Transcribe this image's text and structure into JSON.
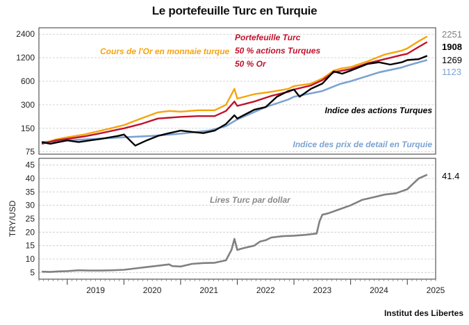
{
  "title": "Le portefeuille Turc en Turquie",
  "source": "Institut des Libertes",
  "chart_data": [
    {
      "type": "line",
      "yscale": "log",
      "ylim": [
        70,
        2900
      ],
      "yticks": [
        75,
        150,
        300,
        600,
        1200,
        2400
      ],
      "grid": true,
      "series": [
        {
          "name": "Cours de l'Or en monnaie turque",
          "color": "#F5A40D",
          "end_label": "2251",
          "end_label_color": "#808080",
          "points": [
            [
              2018.55,
              95
            ],
            [
              2018.8,
              108
            ],
            [
              2019.0,
              115
            ],
            [
              2019.3,
              125
            ],
            [
              2019.6,
              140
            ],
            [
              2019.9,
              158
            ],
            [
              2020.0,
              165
            ],
            [
              2020.3,
              200
            ],
            [
              2020.6,
              240
            ],
            [
              2020.8,
              250
            ],
            [
              2021.0,
              245
            ],
            [
              2021.3,
              255
            ],
            [
              2021.6,
              255
            ],
            [
              2021.8,
              300
            ],
            [
              2021.95,
              480
            ],
            [
              2022.0,
              360
            ],
            [
              2022.3,
              410
            ],
            [
              2022.6,
              440
            ],
            [
              2022.9,
              480
            ],
            [
              2023.0,
              520
            ],
            [
              2023.3,
              560
            ],
            [
              2023.5,
              650
            ],
            [
              2023.7,
              820
            ],
            [
              2023.85,
              880
            ],
            [
              2024.0,
              910
            ],
            [
              2024.3,
              1080
            ],
            [
              2024.6,
              1320
            ],
            [
              2024.9,
              1480
            ],
            [
              2025.0,
              1580
            ],
            [
              2025.2,
              1950
            ],
            [
              2025.35,
              2251
            ]
          ]
        },
        {
          "name": "Portefeuille Turc 50 % actions Turques 50 % Or",
          "color": "#C0122B",
          "end_label": "1908",
          "end_label_color": "#000000",
          "points": [
            [
              2018.55,
              95
            ],
            [
              2018.8,
              105
            ],
            [
              2019.0,
              110
            ],
            [
              2019.3,
              118
            ],
            [
              2019.6,
              130
            ],
            [
              2019.9,
              145
            ],
            [
              2020.0,
              150
            ],
            [
              2020.3,
              170
            ],
            [
              2020.6,
              200
            ],
            [
              2020.8,
              205
            ],
            [
              2021.0,
              210
            ],
            [
              2021.3,
              215
            ],
            [
              2021.6,
              215
            ],
            [
              2021.8,
              250
            ],
            [
              2021.95,
              330
            ],
            [
              2022.0,
              290
            ],
            [
              2022.3,
              330
            ],
            [
              2022.6,
              390
            ],
            [
              2022.9,
              440
            ],
            [
              2023.0,
              470
            ],
            [
              2023.3,
              530
            ],
            [
              2023.5,
              620
            ],
            [
              2023.7,
              780
            ],
            [
              2023.85,
              820
            ],
            [
              2024.0,
              860
            ],
            [
              2024.3,
              1020
            ],
            [
              2024.6,
              1150
            ],
            [
              2024.9,
              1300
            ],
            [
              2025.0,
              1350
            ],
            [
              2025.2,
              1650
            ],
            [
              2025.35,
              1908
            ]
          ]
        },
        {
          "name": "Indice des actions Turques",
          "color": "#000000",
          "end_label": "1269",
          "end_label_color": "#000000",
          "points": [
            [
              2018.55,
              100
            ],
            [
              2018.7,
              95
            ],
            [
              2018.85,
              100
            ],
            [
              2019.0,
              105
            ],
            [
              2019.2,
              100
            ],
            [
              2019.4,
              105
            ],
            [
              2019.6,
              110
            ],
            [
              2019.9,
              120
            ],
            [
              2020.0,
              125
            ],
            [
              2020.2,
              90
            ],
            [
              2020.4,
              105
            ],
            [
              2020.6,
              120
            ],
            [
              2020.8,
              130
            ],
            [
              2021.0,
              140
            ],
            [
              2021.2,
              135
            ],
            [
              2021.4,
              130
            ],
            [
              2021.6,
              140
            ],
            [
              2021.8,
              170
            ],
            [
              2021.95,
              220
            ],
            [
              2022.0,
              200
            ],
            [
              2022.3,
              260
            ],
            [
              2022.5,
              280
            ],
            [
              2022.7,
              380
            ],
            [
              2022.9,
              450
            ],
            [
              2023.0,
              470
            ],
            [
              2023.1,
              380
            ],
            [
              2023.3,
              480
            ],
            [
              2023.5,
              560
            ],
            [
              2023.7,
              800
            ],
            [
              2023.85,
              750
            ],
            [
              2024.0,
              820
            ],
            [
              2024.3,
              1000
            ],
            [
              2024.5,
              1050
            ],
            [
              2024.7,
              980
            ],
            [
              2024.9,
              1050
            ],
            [
              2025.0,
              1120
            ],
            [
              2025.2,
              1150
            ],
            [
              2025.35,
              1269
            ]
          ]
        },
        {
          "name": "Indice des prix de detail en Turquie",
          "color": "#7BA3D0",
          "end_label": "1123",
          "end_label_color": "#7BA3D0",
          "points": [
            [
              2018.55,
              100
            ],
            [
              2019.0,
              105
            ],
            [
              2019.5,
              110
            ],
            [
              2020.0,
              115
            ],
            [
              2020.5,
              120
            ],
            [
              2021.0,
              128
            ],
            [
              2021.5,
              140
            ],
            [
              2021.8,
              160
            ],
            [
              2022.0,
              195
            ],
            [
              2022.5,
              280
            ],
            [
              2022.9,
              350
            ],
            [
              2023.0,
              380
            ],
            [
              2023.5,
              450
            ],
            [
              2023.8,
              550
            ],
            [
              2024.0,
              600
            ],
            [
              2024.5,
              780
            ],
            [
              2024.9,
              900
            ],
            [
              2025.0,
              950
            ],
            [
              2025.35,
              1123
            ]
          ]
        }
      ],
      "annotations": [
        {
          "text": "Cours de l'Or en monnaie turque",
          "color": "#F5A40D"
        },
        {
          "text": "Portefeuille Turc",
          "color": "#C0122B"
        },
        {
          "text": "50 % actions Turques",
          "color": "#C0122B"
        },
        {
          "text": "50 % Or",
          "color": "#C0122B"
        },
        {
          "text": "Indice des actions Turques",
          "color": "#000000"
        },
        {
          "text": "Indice des prix de detail en Turquie",
          "color": "#7BA3D0"
        }
      ]
    },
    {
      "type": "line",
      "ylabel": "TRY/USD",
      "ylim": [
        2.5,
        47.5
      ],
      "yticks": [
        5,
        10,
        15,
        20,
        25,
        30,
        35,
        40,
        45
      ],
      "grid": true,
      "xlim": [
        2018.5,
        2025.5
      ],
      "xticks": [
        "2019",
        "2020",
        "2021",
        "2022",
        "2023",
        "2024",
        "2025"
      ],
      "series": [
        {
          "name": "Lires Turc par dollar",
          "color": "#808080",
          "end_label": "41.4",
          "end_label_color": "#000000",
          "points": [
            [
              2018.55,
              5.3
            ],
            [
              2018.7,
              5.2
            ],
            [
              2018.85,
              5.4
            ],
            [
              2019.0,
              5.5
            ],
            [
              2019.2,
              5.8
            ],
            [
              2019.4,
              5.7
            ],
            [
              2019.6,
              5.7
            ],
            [
              2019.8,
              5.8
            ],
            [
              2020.0,
              6.0
            ],
            [
              2020.2,
              6.5
            ],
            [
              2020.4,
              7.0
            ],
            [
              2020.6,
              7.5
            ],
            [
              2020.8,
              8.0
            ],
            [
              2020.85,
              7.4
            ],
            [
              2021.0,
              7.2
            ],
            [
              2021.2,
              8.2
            ],
            [
              2021.4,
              8.5
            ],
            [
              2021.6,
              8.6
            ],
            [
              2021.8,
              9.5
            ],
            [
              2021.9,
              13.5
            ],
            [
              2021.95,
              17.5
            ],
            [
              2022.0,
              13.4
            ],
            [
              2022.1,
              14.0
            ],
            [
              2022.3,
              15.0
            ],
            [
              2022.4,
              16.5
            ],
            [
              2022.5,
              17.0
            ],
            [
              2022.6,
              18.0
            ],
            [
              2022.8,
              18.5
            ],
            [
              2023.0,
              18.7
            ],
            [
              2023.2,
              19.0
            ],
            [
              2023.4,
              19.5
            ],
            [
              2023.45,
              24.0
            ],
            [
              2023.5,
              26.5
            ],
            [
              2023.6,
              27.0
            ],
            [
              2023.8,
              28.5
            ],
            [
              2024.0,
              30.0
            ],
            [
              2024.2,
              32.0
            ],
            [
              2024.4,
              33.0
            ],
            [
              2024.6,
              34.0
            ],
            [
              2024.8,
              34.5
            ],
            [
              2025.0,
              36.0
            ],
            [
              2025.1,
              38.0
            ],
            [
              2025.2,
              40.0
            ],
            [
              2025.35,
              41.4
            ]
          ]
        }
      ],
      "annotations": [
        {
          "text": "Lires Turc par dollar",
          "color": "#888888"
        }
      ]
    }
  ]
}
